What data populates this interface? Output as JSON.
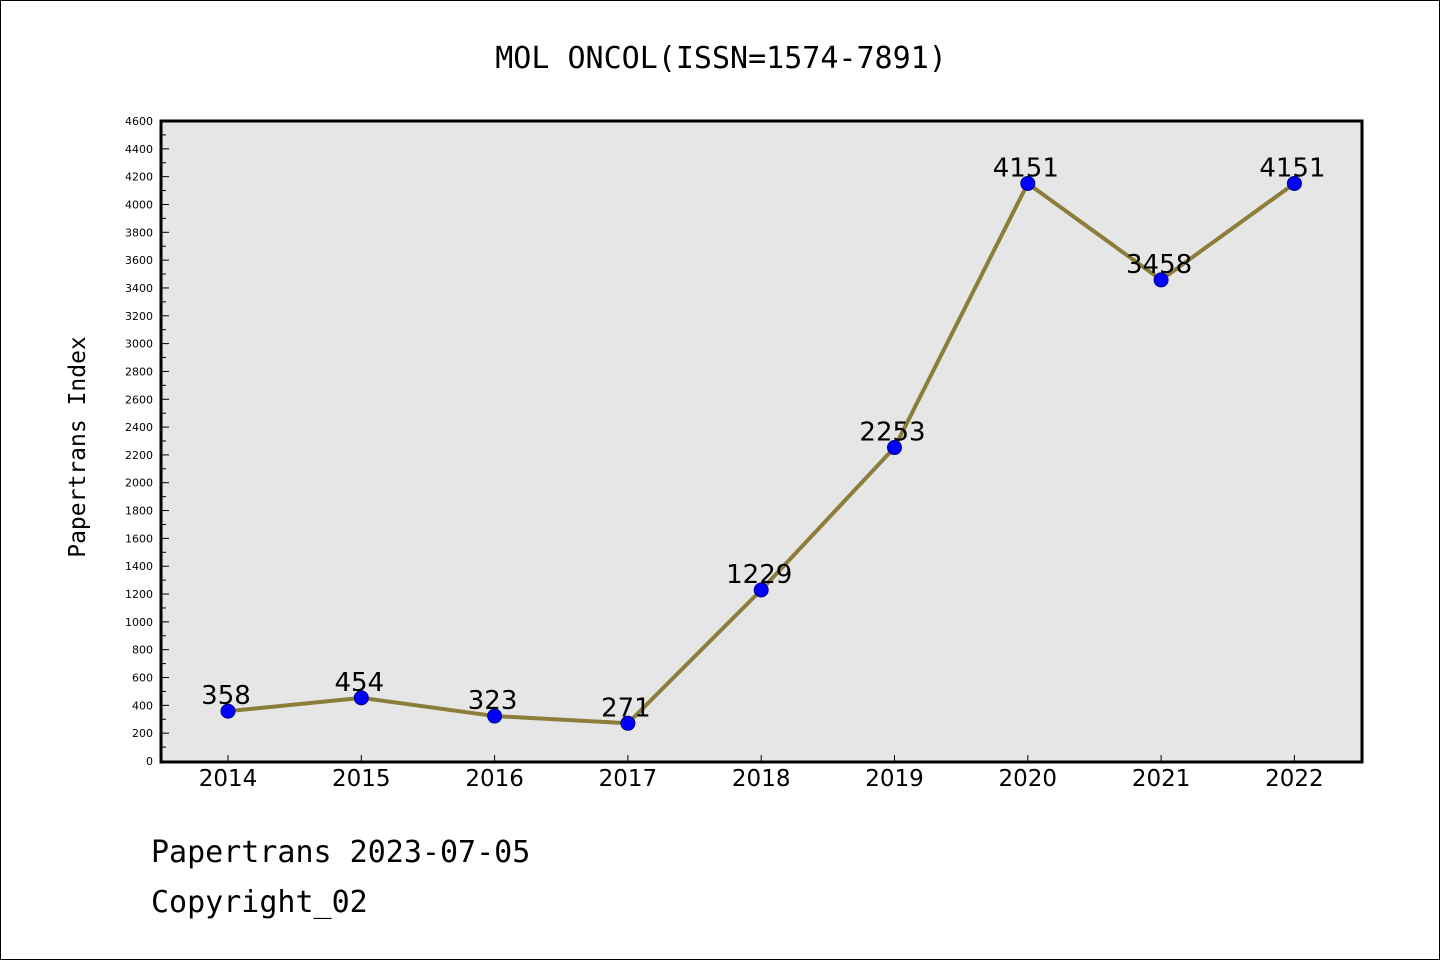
{
  "chart_data": {
    "type": "line",
    "title": "MOL ONCOL(ISSN=1574-7891)",
    "xlabel": "",
    "ylabel": "Papertrans Index",
    "categories": [
      "2014",
      "2015",
      "2016",
      "2017",
      "2018",
      "2019",
      "2020",
      "2021",
      "2022"
    ],
    "series": [
      {
        "values": [
          358,
          454,
          323,
          271,
          1229,
          2253,
          4151,
          3458,
          4151
        ]
      }
    ],
    "data_labels": [
      "358",
      "454",
      "323",
      "271",
      "1229",
      "2253",
      "4151",
      "3458",
      "4151"
    ],
    "ylim": [
      0,
      4600
    ],
    "y_ticks": [
      "0",
      "200",
      "400",
      "600",
      "800",
      "1000",
      "1200",
      "1400",
      "1600",
      "1800",
      "2000",
      "2200",
      "2400",
      "2600",
      "2800",
      "3000",
      "3200",
      "3400",
      "3600",
      "3800",
      "4000",
      "4200",
      "4400",
      "4600"
    ],
    "grid": false,
    "legend": "none",
    "colors": {
      "line": "#8B7D3A",
      "marker_fill": "#0000FF",
      "marker_edge": "#00008B",
      "plot_background": "#E6E6E6"
    }
  },
  "footer": {
    "line1": "Papertrans 2023-07-05",
    "line2": "Copyright_02"
  }
}
